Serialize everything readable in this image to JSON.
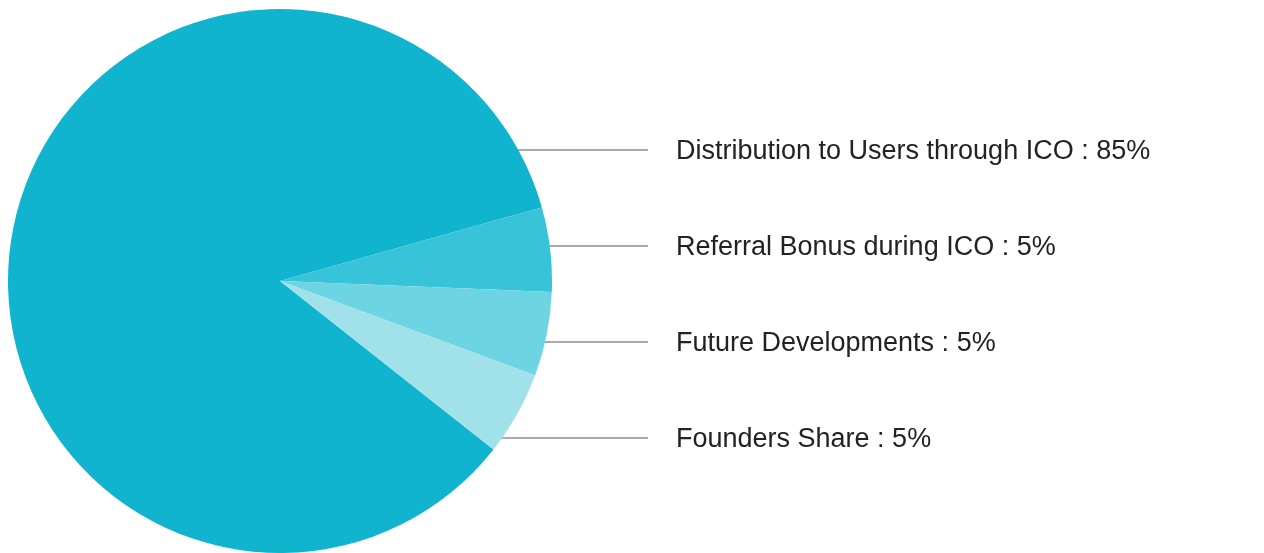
{
  "chart_data": {
    "type": "pie",
    "categories": [
      "Distribution to Users through ICO : 85%",
      "Referral Bonus during ICO : 5%",
      "Future Developments : 5%",
      "Founders Share : 5%"
    ],
    "values": [
      85,
      5,
      5,
      5
    ],
    "colors": [
      "#10b4ce",
      "#37c3d8",
      "#6cd4e3",
      "#a0e1ea"
    ],
    "legend": false
  }
}
